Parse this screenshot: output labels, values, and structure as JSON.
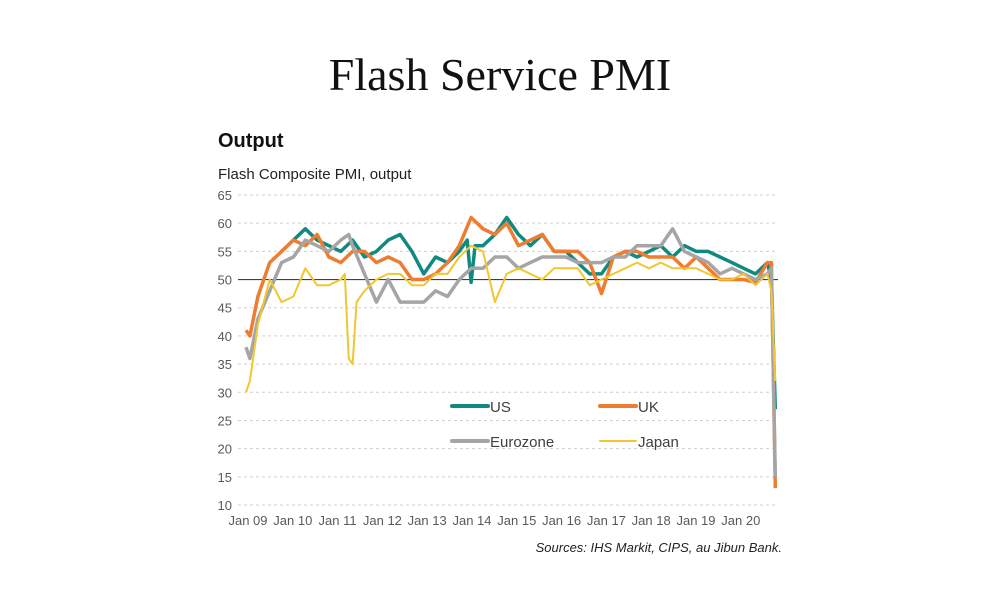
{
  "title": "Flash Service PMI",
  "chart_data": {
    "type": "line",
    "title": "Output",
    "subtitle": "Flash Composite PMI, output",
    "source": "Sources: IHS Markit, CIPS, au Jibun Bank.",
    "ylim": [
      10,
      65
    ],
    "yticks": [
      10,
      15,
      20,
      25,
      30,
      35,
      40,
      45,
      50,
      55,
      60,
      65
    ],
    "xticks": [
      "Jan 09",
      "Jan 10",
      "Jan 11",
      "Jan 12",
      "Jan 13",
      "Jan 14",
      "Jan 15",
      "Jan 16",
      "Jan 17",
      "Jan 18",
      "Jan 19",
      "Jan 20"
    ],
    "reference_line": 50,
    "grid": "horizontal dashed",
    "legend_placement": "inside-bottom-center",
    "series": [
      {
        "name": "US",
        "color": "#108A80",
        "points": [
          [
            "2009-10",
            55
          ],
          [
            "2010-01",
            57
          ],
          [
            "2010-04",
            59
          ],
          [
            "2010-07",
            57
          ],
          [
            "2010-10",
            56
          ],
          [
            "2011-01",
            55
          ],
          [
            "2011-04",
            57
          ],
          [
            "2011-07",
            54
          ],
          [
            "2011-10",
            55
          ],
          [
            "2012-01",
            57
          ],
          [
            "2012-04",
            58
          ],
          [
            "2012-07",
            55
          ],
          [
            "2012-10",
            51
          ],
          [
            "2013-01",
            54
          ],
          [
            "2013-04",
            53
          ],
          [
            "2013-07",
            55
          ],
          [
            "2013-09",
            57
          ],
          [
            "2013-10",
            49.5
          ],
          [
            "2013-11",
            56
          ],
          [
            "2014-01",
            56
          ],
          [
            "2014-04",
            58
          ],
          [
            "2014-07",
            61
          ],
          [
            "2014-10",
            58
          ],
          [
            "2015-01",
            56
          ],
          [
            "2015-04",
            58
          ],
          [
            "2015-07",
            55
          ],
          [
            "2015-10",
            55
          ],
          [
            "2016-01",
            53
          ],
          [
            "2016-04",
            51
          ],
          [
            "2016-07",
            51
          ],
          [
            "2016-10",
            54
          ],
          [
            "2017-01",
            55
          ],
          [
            "2017-04",
            54
          ],
          [
            "2017-07",
            55
          ],
          [
            "2017-10",
            56
          ],
          [
            "2018-01",
            54
          ],
          [
            "2018-04",
            56
          ],
          [
            "2018-07",
            55
          ],
          [
            "2018-10",
            55
          ],
          [
            "2019-01",
            54
          ],
          [
            "2019-04",
            53
          ],
          [
            "2019-07",
            52
          ],
          [
            "2019-10",
            51
          ],
          [
            "2020-01",
            53
          ],
          [
            "2020-02",
            50
          ],
          [
            "2020-03",
            27
          ]
        ]
      },
      {
        "name": "UK",
        "color": "#EE7D31",
        "points": [
          [
            "2009-01",
            41
          ],
          [
            "2009-02",
            40
          ],
          [
            "2009-04",
            47
          ],
          [
            "2009-07",
            53
          ],
          [
            "2009-10",
            55
          ],
          [
            "2010-01",
            57
          ],
          [
            "2010-04",
            56
          ],
          [
            "2010-07",
            58
          ],
          [
            "2010-10",
            54
          ],
          [
            "2011-01",
            53
          ],
          [
            "2011-04",
            55
          ],
          [
            "2011-07",
            55
          ],
          [
            "2011-10",
            53
          ],
          [
            "2012-01",
            54
          ],
          [
            "2012-04",
            53
          ],
          [
            "2012-07",
            50
          ],
          [
            "2012-10",
            50
          ],
          [
            "2013-01",
            51
          ],
          [
            "2013-04",
            53
          ],
          [
            "2013-07",
            56
          ],
          [
            "2013-10",
            61
          ],
          [
            "2014-01",
            59
          ],
          [
            "2014-04",
            58
          ],
          [
            "2014-07",
            60
          ],
          [
            "2014-10",
            56
          ],
          [
            "2015-01",
            57
          ],
          [
            "2015-04",
            58
          ],
          [
            "2015-07",
            55
          ],
          [
            "2015-10",
            55
          ],
          [
            "2016-01",
            55
          ],
          [
            "2016-04",
            53
          ],
          [
            "2016-07",
            47.5
          ],
          [
            "2016-10",
            54
          ],
          [
            "2017-01",
            55
          ],
          [
            "2017-04",
            55
          ],
          [
            "2017-07",
            54
          ],
          [
            "2017-10",
            54
          ],
          [
            "2018-01",
            54
          ],
          [
            "2018-04",
            52
          ],
          [
            "2018-07",
            54
          ],
          [
            "2018-10",
            52
          ],
          [
            "2019-01",
            50
          ],
          [
            "2019-04",
            50
          ],
          [
            "2019-07",
            50
          ],
          [
            "2019-10",
            49.5
          ],
          [
            "2020-01",
            53
          ],
          [
            "2020-02",
            53
          ],
          [
            "2020-03",
            13
          ]
        ]
      },
      {
        "name": "Eurozone",
        "color": "#A5A5A5",
        "points": [
          [
            "2009-01",
            38
          ],
          [
            "2009-02",
            36
          ],
          [
            "2009-04",
            43
          ],
          [
            "2009-07",
            48
          ],
          [
            "2009-10",
            53
          ],
          [
            "2010-01",
            54
          ],
          [
            "2010-04",
            57
          ],
          [
            "2010-07",
            56
          ],
          [
            "2010-10",
            55
          ],
          [
            "2011-01",
            57
          ],
          [
            "2011-03",
            58
          ],
          [
            "2011-04",
            56
          ],
          [
            "2011-07",
            51
          ],
          [
            "2011-10",
            46
          ],
          [
            "2012-01",
            50
          ],
          [
            "2012-04",
            46
          ],
          [
            "2012-07",
            46
          ],
          [
            "2012-10",
            46
          ],
          [
            "2013-01",
            48
          ],
          [
            "2013-04",
            47
          ],
          [
            "2013-07",
            50
          ],
          [
            "2013-10",
            52
          ],
          [
            "2014-01",
            52
          ],
          [
            "2014-04",
            54
          ],
          [
            "2014-07",
            54
          ],
          [
            "2014-10",
            52
          ],
          [
            "2015-01",
            53
          ],
          [
            "2015-04",
            54
          ],
          [
            "2015-07",
            54
          ],
          [
            "2015-10",
            54
          ],
          [
            "2016-01",
            53
          ],
          [
            "2016-04",
            53
          ],
          [
            "2016-07",
            53
          ],
          [
            "2016-10",
            54
          ],
          [
            "2017-01",
            54
          ],
          [
            "2017-04",
            56
          ],
          [
            "2017-07",
            56
          ],
          [
            "2017-10",
            56
          ],
          [
            "2018-01",
            59
          ],
          [
            "2018-04",
            55
          ],
          [
            "2018-07",
            54
          ],
          [
            "2018-10",
            53
          ],
          [
            "2019-01",
            51
          ],
          [
            "2019-04",
            52
          ],
          [
            "2019-07",
            51
          ],
          [
            "2019-10",
            50
          ],
          [
            "2020-01",
            51
          ],
          [
            "2020-02",
            52
          ],
          [
            "2020-03",
            15
          ]
        ]
      },
      {
        "name": "Japan",
        "color": "#F2C62F",
        "points": [
          [
            "2009-01",
            30
          ],
          [
            "2009-02",
            32
          ],
          [
            "2009-04",
            42
          ],
          [
            "2009-07",
            50
          ],
          [
            "2009-10",
            46
          ],
          [
            "2010-01",
            47
          ],
          [
            "2010-04",
            52
          ],
          [
            "2010-07",
            49
          ],
          [
            "2010-10",
            49
          ],
          [
            "2011-01",
            50
          ],
          [
            "2011-02",
            51
          ],
          [
            "2011-03",
            36
          ],
          [
            "2011-04",
            35
          ],
          [
            "2011-05",
            46
          ],
          [
            "2011-07",
            48
          ],
          [
            "2011-10",
            50
          ],
          [
            "2012-01",
            51
          ],
          [
            "2012-04",
            51
          ],
          [
            "2012-07",
            49
          ],
          [
            "2012-10",
            49
          ],
          [
            "2013-01",
            51
          ],
          [
            "2013-04",
            51
          ],
          [
            "2013-07",
            54
          ],
          [
            "2013-10",
            56
          ],
          [
            "2014-01",
            55
          ],
          [
            "2014-04",
            46
          ],
          [
            "2014-07",
            51
          ],
          [
            "2014-10",
            52
          ],
          [
            "2015-01",
            51
          ],
          [
            "2015-04",
            50
          ],
          [
            "2015-07",
            52
          ],
          [
            "2015-10",
            52
          ],
          [
            "2016-01",
            52
          ],
          [
            "2016-04",
            49
          ],
          [
            "2016-07",
            50
          ],
          [
            "2016-10",
            51
          ],
          [
            "2017-01",
            52
          ],
          [
            "2017-04",
            53
          ],
          [
            "2017-07",
            52
          ],
          [
            "2017-10",
            53
          ],
          [
            "2018-01",
            52
          ],
          [
            "2018-04",
            52
          ],
          [
            "2018-07",
            52
          ],
          [
            "2018-10",
            51
          ],
          [
            "2019-01",
            50
          ],
          [
            "2019-04",
            50
          ],
          [
            "2019-07",
            51
          ],
          [
            "2019-10",
            49
          ],
          [
            "2020-01",
            51
          ],
          [
            "2020-02",
            48
          ],
          [
            "2020-03",
            32
          ]
        ]
      }
    ]
  }
}
